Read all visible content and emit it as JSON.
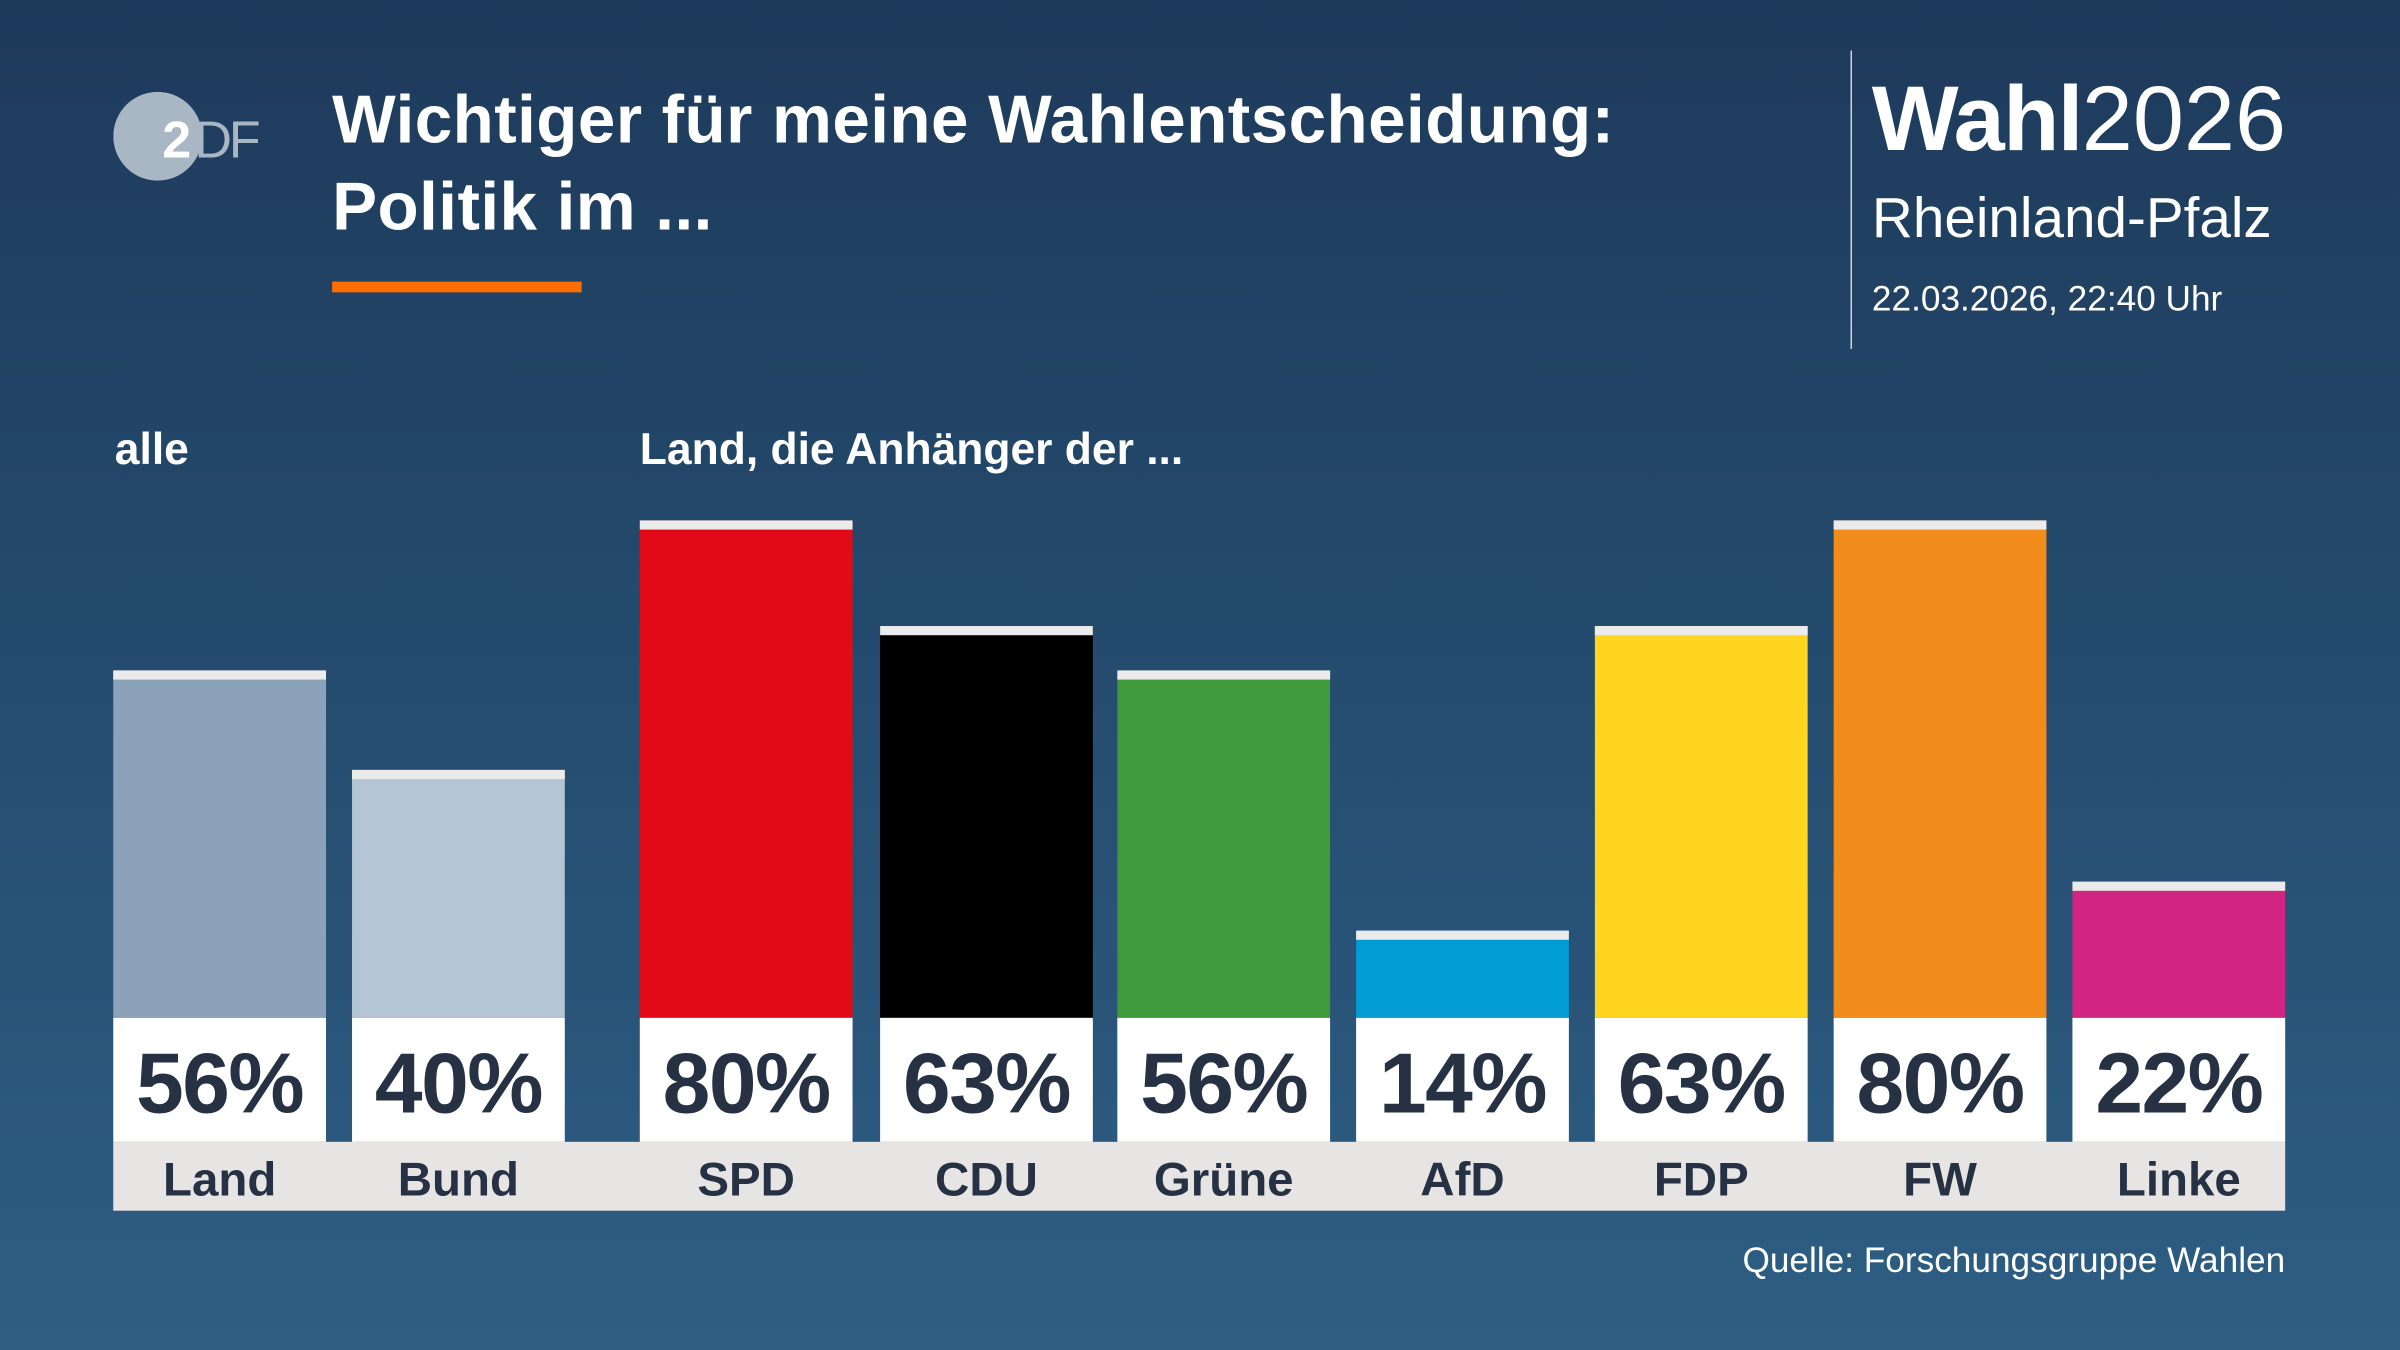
{
  "header": {
    "logo_text": "ZDF",
    "title_line1": "Wichtiger für meine Wahlentscheidung:",
    "title_line2": "Politik im ...",
    "brand_bold": "Wahl",
    "brand_year": "2026",
    "region": "Rheinland-Pfalz",
    "datetime": "22.03.2026, 22:40 Uhr",
    "accent_color": "#ff6f00"
  },
  "chart_data": {
    "type": "bar",
    "unit": "%",
    "ylim": [
      0,
      80
    ],
    "grid": false,
    "groups": [
      {
        "label": "alle",
        "categories": [
          "Land",
          "Bund"
        ]
      },
      {
        "label": "Land, die Anhänger der ...",
        "categories": [
          "SPD",
          "CDU",
          "Grüne",
          "AfD",
          "FDP",
          "FW",
          "Linke"
        ]
      }
    ],
    "categories": [
      "Land",
      "Bund",
      "SPD",
      "CDU",
      "Grüne",
      "AfD",
      "FDP",
      "FW",
      "Linke"
    ],
    "values": [
      56,
      40,
      80,
      63,
      56,
      14,
      63,
      80,
      22
    ],
    "value_labels": [
      "56%",
      "40%",
      "80%",
      "63%",
      "56%",
      "14%",
      "63%",
      "80%",
      "22%"
    ],
    "colors": [
      "#8ca2b8",
      "#b4c5d5",
      "#e30a17",
      "#000000",
      "#3f9a3c",
      "#019cd3",
      "#ffd520",
      "#f28c1a",
      "#d12581"
    ]
  },
  "source": "Quelle: Forschungsgruppe Wahlen"
}
